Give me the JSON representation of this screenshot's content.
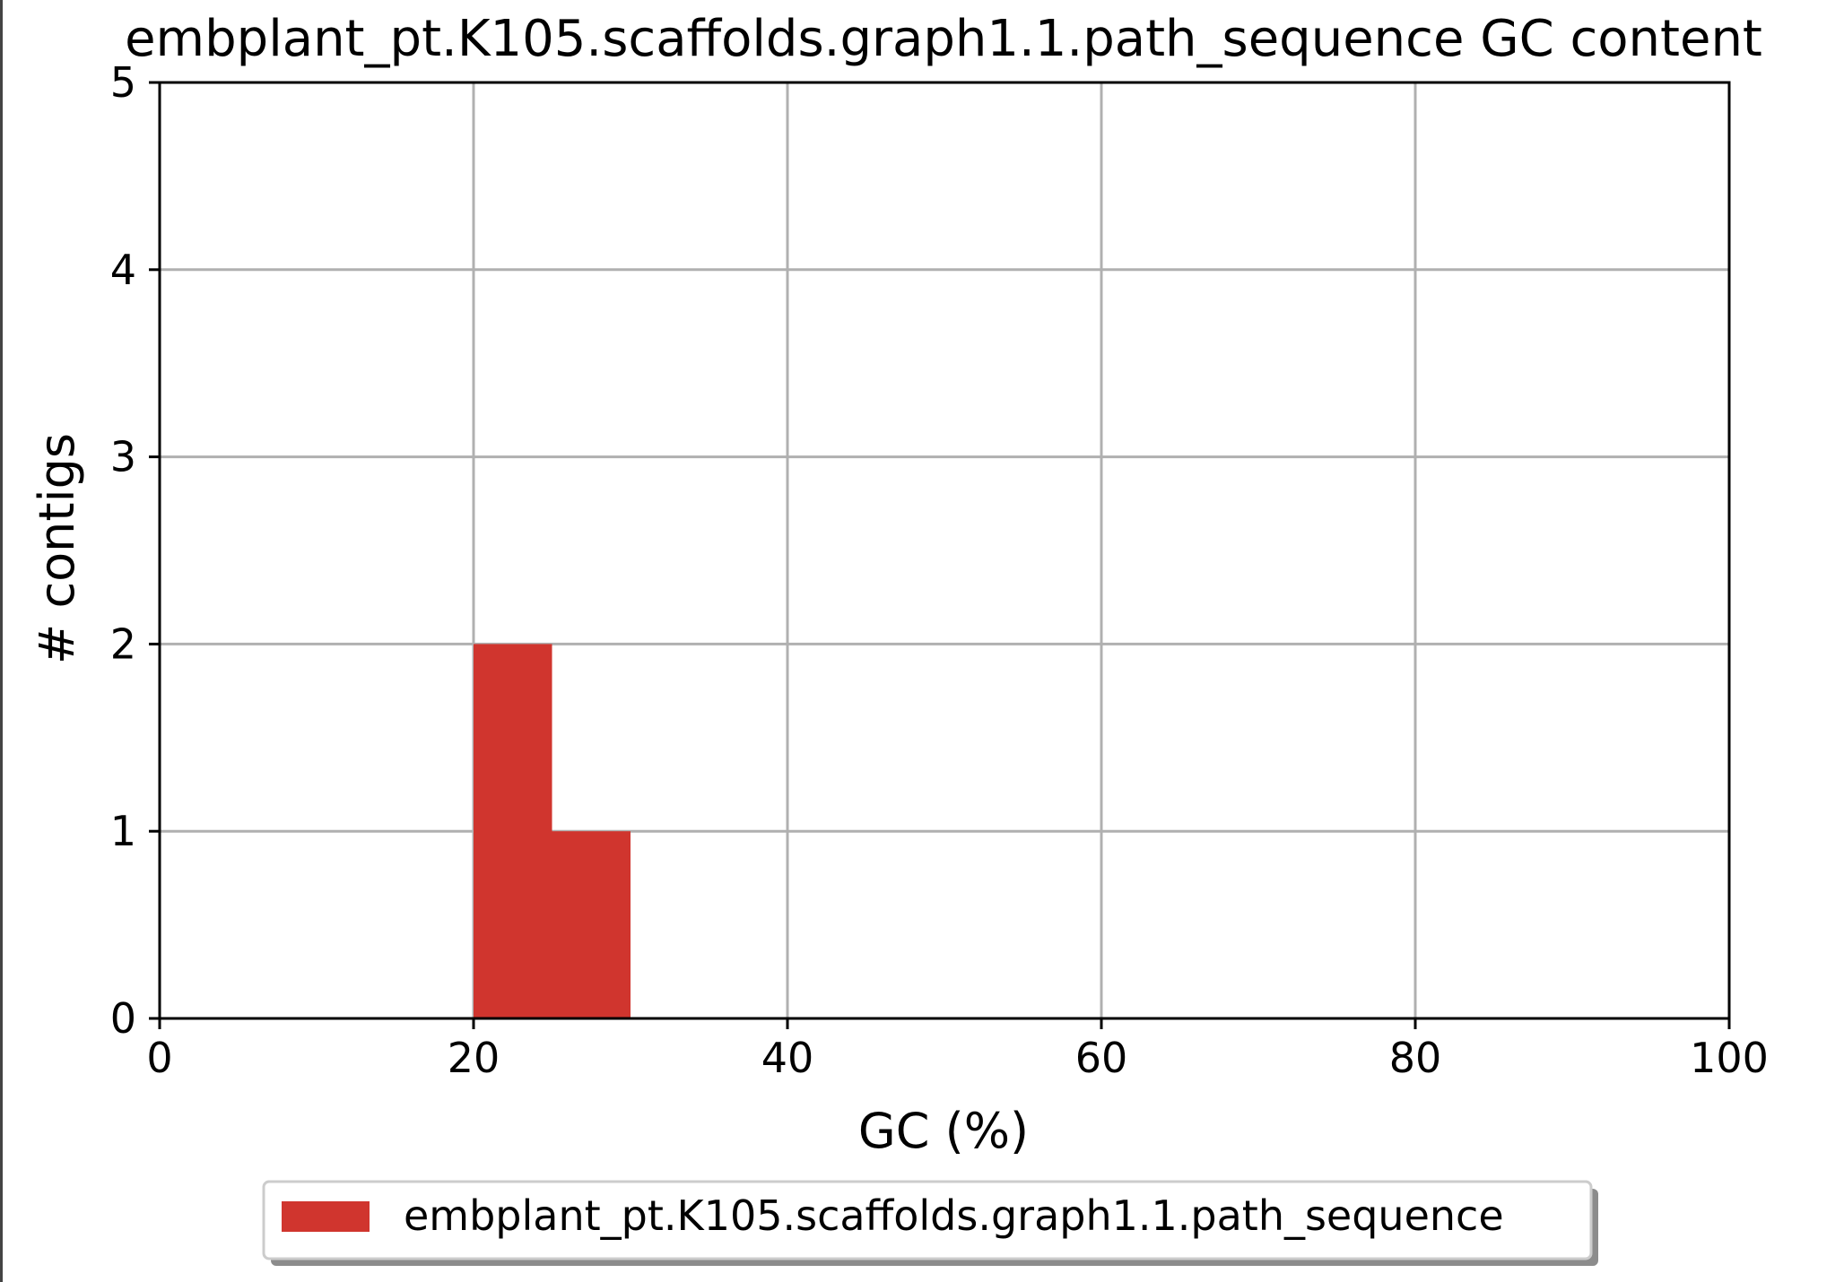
{
  "chart_data": {
    "type": "bar",
    "title": "embplant_pt.K105.scaffolds.graph1.1.path_sequence GC content",
    "xlabel": "GC (%)",
    "ylabel": "# contigs",
    "xlim": [
      0,
      100
    ],
    "ylim": [
      0,
      5
    ],
    "xticks": [
      0,
      20,
      40,
      60,
      80,
      100
    ],
    "yticks": [
      0,
      1,
      2,
      3,
      4,
      5
    ],
    "grid": true,
    "legend_position": "bottom-center, below plot",
    "series": [
      {
        "name": "embplant_pt.K105.scaffolds.graph1.1.path_sequence",
        "color": "#d0352e",
        "bins": [
          {
            "x_start": 20,
            "x_end": 25,
            "value": 2
          },
          {
            "x_start": 25,
            "x_end": 30,
            "value": 1
          }
        ]
      }
    ]
  }
}
